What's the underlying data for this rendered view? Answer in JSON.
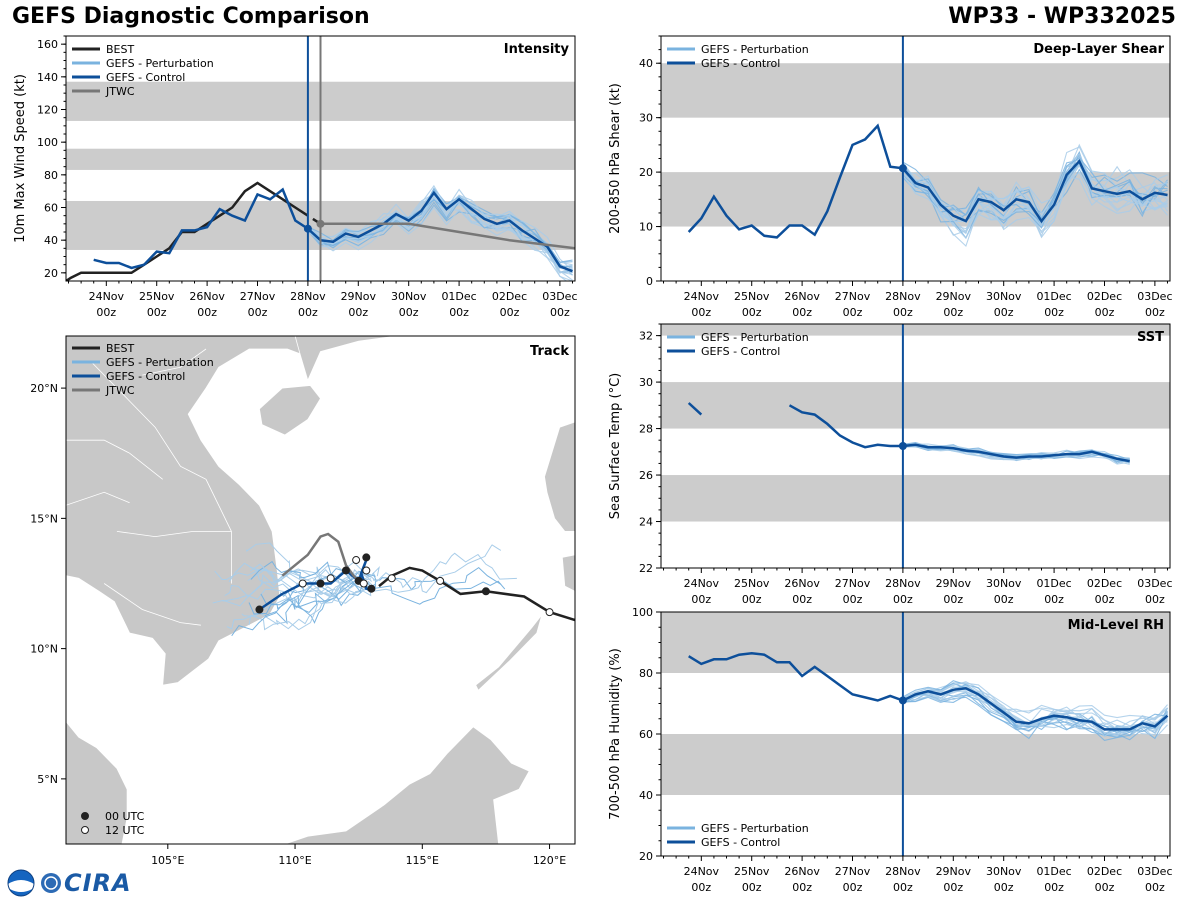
{
  "page": {
    "title_left": "GEFS Diagnostic Comparison",
    "title_right": "WP33 - WP332025",
    "logo_text": "CIRA",
    "colors": {
      "best": "#222222",
      "pert": "#7ab3df",
      "pert_thin": "#a9cde9",
      "control": "#0d4f9a",
      "jtwc": "#777777",
      "band": "#cccccc",
      "land": "#c8c8c8"
    }
  },
  "chart_data": [
    {
      "id": "intensity",
      "type": "line",
      "title": "Intensity",
      "ylabel": "10m Max Wind Speed (kt)",
      "ylim": [
        15,
        165
      ],
      "yticks": [
        20,
        40,
        60,
        80,
        100,
        120,
        140,
        160
      ],
      "xlim_days": [
        -4.8,
        5.3
      ],
      "xticks": [
        {
          "line1": "24Nov",
          "line2": "00z",
          "day": -4
        },
        {
          "line1": "25Nov",
          "line2": "00z",
          "day": -3
        },
        {
          "line1": "26Nov",
          "line2": "00z",
          "day": -2
        },
        {
          "line1": "27Nov",
          "line2": "00z",
          "day": -1
        },
        {
          "line1": "28Nov",
          "line2": "00z",
          "day": 0
        },
        {
          "line1": "29Nov",
          "line2": "00z",
          "day": 1
        },
        {
          "line1": "30Nov",
          "line2": "00z",
          "day": 2
        },
        {
          "line1": "01Dec",
          "line2": "00z",
          "day": 3
        },
        {
          "line1": "02Dec",
          "line2": "00z",
          "day": 4
        },
        {
          "line1": "03Dec",
          "line2": "00z",
          "day": 5
        }
      ],
      "bands": [
        [
          34,
          64
        ],
        [
          83,
          96
        ],
        [
          113,
          137
        ]
      ],
      "init_day": 0,
      "jtwc_init_day": 0.25,
      "legend": [
        "BEST",
        "GEFS - Perturbation",
        "GEFS - Control",
        "JTWC"
      ],
      "series": [
        {
          "name": "BEST",
          "days": [
            -4.8,
            -4.7,
            -4.5,
            -4.0,
            -3.5,
            -3.25,
            -3.0,
            -2.75,
            -2.5,
            -2.25,
            -2.0,
            -1.75,
            -1.5,
            -1.25,
            -1.0,
            -0.75,
            -0.5,
            -0.25,
            0.0
          ],
          "values": [
            15,
            17,
            20,
            20,
            20,
            25,
            30,
            35,
            45,
            45,
            50,
            55,
            60,
            70,
            75,
            70,
            65,
            60,
            55
          ]
        },
        {
          "name": "BEST2",
          "days": [
            0.1,
            0.25
          ],
          "values": [
            53,
            50
          ]
        },
        {
          "name": "GEFS - Control",
          "days": [
            -4.25,
            -4.0,
            -3.75,
            -3.5,
            -3.25,
            -3.0,
            -2.75,
            -2.5,
            -2.25,
            -2.0,
            -1.75,
            -1.5,
            -1.25,
            -1.0,
            -0.75,
            -0.5,
            -0.25,
            0.0,
            0.25,
            0.5,
            0.75,
            1.0,
            1.25,
            1.5,
            1.75,
            2.0,
            2.25,
            2.5,
            2.75,
            3.0,
            3.25,
            3.5,
            3.75,
            4.0,
            4.25,
            4.5,
            4.75,
            5.0,
            5.25
          ],
          "values": [
            28,
            26,
            26,
            23,
            25,
            33,
            32,
            46,
            46,
            48,
            59,
            55,
            52,
            68,
            65,
            71,
            52,
            47,
            40,
            39,
            44,
            42,
            46,
            50,
            56,
            52,
            58,
            69,
            59,
            65,
            59,
            53,
            50,
            52,
            46,
            41,
            36,
            24,
            21
          ]
        },
        {
          "name": "JTWC",
          "days": [
            0.25,
            1.0,
            2.0,
            3.0,
            4.0,
            5.3
          ],
          "values": [
            50,
            50,
            50,
            45,
            40,
            35
          ]
        }
      ]
    },
    {
      "id": "shear",
      "type": "line",
      "title": "Deep-Layer Shear",
      "ylabel": "200-850 hPa Shear (kt)",
      "ylim": [
        0,
        45
      ],
      "yticks": [
        0,
        10,
        20,
        30,
        40
      ],
      "xlim_days": [
        -4.8,
        5.3
      ],
      "bands": [
        [
          10,
          20
        ],
        [
          30,
          40
        ]
      ],
      "init_day": 0,
      "legend": [
        "GEFS - Perturbation",
        "GEFS - Control"
      ],
      "series": [
        {
          "name": "GEFS - Control",
          "days": [
            -4.25,
            -4.0,
            -3.75,
            -3.5,
            -3.25,
            -3.0,
            -2.75,
            -2.5,
            -2.25,
            -2.0,
            -1.75,
            -1.5,
            -1.25,
            -1.0,
            -0.75,
            -0.5,
            -0.25,
            0.0,
            0.25,
            0.5,
            0.75,
            1.0,
            1.25,
            1.5,
            1.75,
            2.0,
            2.25,
            2.5,
            2.75,
            3.0,
            3.25,
            3.5,
            3.75,
            4.0,
            4.25,
            4.5,
            4.75,
            5.0,
            5.25
          ],
          "values": [
            9,
            11.5,
            15.5,
            12,
            9.5,
            10.2,
            8.3,
            8,
            10.2,
            10.2,
            8.5,
            12.8,
            19,
            25,
            26,
            28.5,
            21,
            20.7,
            18,
            17.2,
            14,
            12,
            11,
            15,
            14.5,
            13,
            15,
            14.5,
            11,
            14,
            19.5,
            22,
            17,
            16.5,
            16,
            16.5,
            15,
            16.2,
            15.8
          ]
        }
      ]
    },
    {
      "id": "sst",
      "type": "line",
      "title": "SST",
      "ylabel": "Sea Surface Temp (°C)",
      "ylim": [
        22,
        32.5
      ],
      "yticks": [
        22,
        24,
        26,
        28,
        30,
        32
      ],
      "xlim_days": [
        -4.8,
        5.3
      ],
      "bands": [
        [
          24,
          26
        ],
        [
          28,
          30
        ],
        [
          32,
          32.5
        ]
      ],
      "init_day": 0,
      "legend": [
        "GEFS - Perturbation",
        "GEFS - Control"
      ],
      "series": [
        {
          "name": "GEFS - Control A",
          "days": [
            -4.25,
            -4.0
          ],
          "values": [
            29.1,
            28.6
          ]
        },
        {
          "name": "GEFS - Control",
          "days": [
            -2.25,
            -2.0,
            -1.75,
            -1.5,
            -1.25,
            -1.0,
            -0.75,
            -0.5,
            -0.25,
            0.0,
            0.25,
            0.5,
            0.75,
            1.0,
            1.25,
            1.5,
            1.75,
            2.0,
            2.25,
            2.5,
            2.75,
            3.0,
            3.25,
            3.5,
            3.75,
            4.0,
            4.25,
            4.5
          ],
          "values": [
            29.0,
            28.7,
            28.6,
            28.2,
            27.7,
            27.4,
            27.2,
            27.3,
            27.25,
            27.25,
            27.3,
            27.2,
            27.2,
            27.15,
            27.05,
            27.0,
            26.9,
            26.8,
            26.75,
            26.8,
            26.8,
            26.85,
            26.9,
            26.9,
            27.0,
            26.85,
            26.7,
            26.6
          ]
        }
      ]
    },
    {
      "id": "rh",
      "type": "line",
      "title": "Mid-Level RH",
      "ylabel": "700-500 hPa Humidity (%)",
      "ylim": [
        20,
        100
      ],
      "yticks": [
        20,
        40,
        60,
        80,
        100
      ],
      "xlim_days": [
        -4.8,
        5.3
      ],
      "bands": [
        [
          40,
          60
        ],
        [
          80,
          100
        ]
      ],
      "init_day": 0,
      "legend": [
        "GEFS - Perturbation",
        "GEFS - Control"
      ],
      "series": [
        {
          "name": "GEFS - Control",
          "days": [
            -4.25,
            -4.0,
            -3.75,
            -3.5,
            -3.25,
            -3.0,
            -2.75,
            -2.5,
            -2.25,
            -2.0,
            -1.75,
            -1.5,
            -1.25,
            -1.0,
            -0.75,
            -0.5,
            -0.25,
            0.0,
            0.25,
            0.5,
            0.75,
            1.0,
            1.25,
            1.5,
            1.75,
            2.0,
            2.25,
            2.5,
            2.75,
            3.0,
            3.25,
            3.5,
            3.75,
            4.0,
            4.25,
            4.5,
            4.75,
            5.0,
            5.25
          ],
          "values": [
            85.5,
            83,
            84.5,
            84.5,
            86,
            86.5,
            86,
            83.5,
            83.5,
            79,
            82,
            79,
            76,
            73,
            72,
            71,
            72.5,
            71,
            73,
            74,
            73,
            74.5,
            75,
            73,
            70,
            67,
            64,
            63.5,
            65,
            66,
            65.5,
            64.5,
            64,
            61.5,
            61.5,
            61.5,
            63.5,
            62.5,
            66
          ]
        }
      ]
    },
    {
      "id": "track",
      "type": "scatter",
      "title": "Track",
      "xlim_lon": [
        101,
        121
      ],
      "ylim_lat": [
        2.5,
        22
      ],
      "xticks": [
        {
          "label": "105°E",
          "lon": 105
        },
        {
          "label": "110°E",
          "lon": 110
        },
        {
          "label": "115°E",
          "lon": 115
        },
        {
          "label": "120°E",
          "lon": 120
        }
      ],
      "yticks": [
        {
          "label": "5°N",
          "lat": 5
        },
        {
          "label": "10°N",
          "lat": 10
        },
        {
          "label": "15°N",
          "lat": 15
        },
        {
          "label": "20°N",
          "lat": 20
        }
      ],
      "legend": [
        "BEST",
        "GEFS - Perturbation",
        "GEFS - Control",
        "JTWC"
      ],
      "marker_legend": [
        "00 UTC",
        "12 UTC"
      ],
      "series": [
        {
          "name": "BEST",
          "lon": [
            121,
            120,
            119,
            117.5,
            116.5,
            115.7,
            115,
            114.5,
            113.8,
            113.3
          ],
          "lat": [
            11.1,
            11.4,
            12,
            12.2,
            12.1,
            12.6,
            13,
            13.1,
            12.8,
            12.4
          ]
        },
        {
          "name": "GEFS - Control",
          "lon": [
            108.6,
            109.5,
            110.3,
            110.8,
            111.4,
            112,
            112.5,
            112.8,
            112.6,
            112.8,
            113
          ],
          "lat": [
            11.5,
            12.1,
            12.5,
            12.5,
            12.5,
            13,
            12.6,
            13.4,
            12.9,
            12.3,
            12.3
          ]
        },
        {
          "name": "JTWC",
          "lon": [
            109.5,
            110.5,
            111,
            111.3,
            111.7,
            112,
            112.3,
            112.6
          ],
          "lat": [
            12.8,
            13.6,
            14.3,
            14.4,
            14.1,
            13.2,
            12.8,
            12.5
          ]
        }
      ],
      "points": [
        {
          "lon": 117.5,
          "lat": 12.2,
          "kind": "00"
        },
        {
          "lon": 120.0,
          "lat": 11.4,
          "kind": "12"
        },
        {
          "lon": 115.7,
          "lat": 12.6,
          "kind": "12"
        },
        {
          "lon": 108.6,
          "lat": 11.5,
          "kind": "00"
        },
        {
          "lon": 110.3,
          "lat": 12.5,
          "kind": "12"
        },
        {
          "lon": 111.0,
          "lat": 12.5,
          "kind": "00"
        },
        {
          "lon": 111.4,
          "lat": 12.7,
          "kind": "12"
        },
        {
          "lon": 112.0,
          "lat": 13.0,
          "kind": "00"
        },
        {
          "lon": 112.4,
          "lat": 13.4,
          "kind": "12"
        },
        {
          "lon": 112.8,
          "lat": 13.5,
          "kind": "00"
        },
        {
          "lon": 112.8,
          "lat": 13.0,
          "kind": "12"
        },
        {
          "lon": 112.5,
          "lat": 12.6,
          "kind": "00"
        },
        {
          "lon": 112.7,
          "lat": 12.5,
          "kind": "12"
        },
        {
          "lon": 113.0,
          "lat": 12.3,
          "kind": "00"
        },
        {
          "lon": 113.8,
          "lat": 12.7,
          "kind": "12"
        }
      ]
    }
  ]
}
